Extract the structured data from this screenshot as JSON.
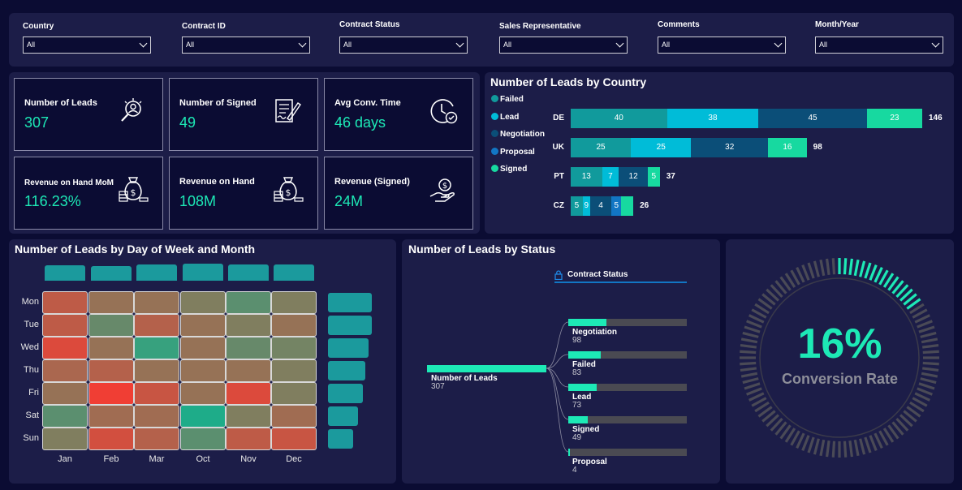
{
  "filters": [
    {
      "label": "Country",
      "value": "All"
    },
    {
      "label": "Contract ID",
      "value": "All"
    },
    {
      "label": "Contract Status",
      "value": "All"
    },
    {
      "label": "Sales Representative",
      "value": "All"
    },
    {
      "label": "Comments",
      "value": "All"
    },
    {
      "label": "Month/Year",
      "value": "All"
    }
  ],
  "kpis": [
    {
      "title": "Number of Leads",
      "value": "307",
      "icon": "search-person-icon"
    },
    {
      "title": "Number of Signed",
      "value": "49",
      "icon": "signed-document-icon"
    },
    {
      "title": "Avg Conv. Time",
      "value": "46 days",
      "icon": "clock-check-icon"
    },
    {
      "title": "Revenue on Hand MoM",
      "value": "116.23%",
      "icon": "money-bag-icon"
    },
    {
      "title": "Revenue on Hand",
      "value": "108M",
      "icon": "money-bag-icon"
    },
    {
      "title": "Revenue (Signed)",
      "value": "24M",
      "icon": "hand-money-icon"
    }
  ],
  "country_chart": {
    "title": "Number of Leads by Country",
    "legend": [
      {
        "name": "Failed",
        "color": "#119a9c"
      },
      {
        "name": "Lead",
        "color": "#00bcd8"
      },
      {
        "name": "Negotiation",
        "color": "#0b4e78"
      },
      {
        "name": "Proposal",
        "color": "#1276c4"
      },
      {
        "name": "Signed",
        "color": "#17d9a0"
      }
    ]
  },
  "heatmap": {
    "title": "Number of Leads by Day of Week and Month",
    "rows": [
      "Mon",
      "Tue",
      "Wed",
      "Thu",
      "Fri",
      "Sat",
      "Sun"
    ],
    "cols": [
      "Jan",
      "Feb",
      "Mar",
      "Oct",
      "Nov",
      "Dec"
    ]
  },
  "status_chart": {
    "title": "Number of Leads by Status",
    "filter_label": "Contract Status",
    "root_label": "Number of Leads",
    "root_value": "307",
    "items": [
      {
        "label": "Negotiation",
        "value": "98"
      },
      {
        "label": "Failed",
        "value": "83"
      },
      {
        "label": "Lead",
        "value": "73"
      },
      {
        "label": "Signed",
        "value": "49"
      },
      {
        "label": "Proposal",
        "value": "4"
      }
    ]
  },
  "gauge": {
    "value": "16%",
    "label": "Conversion Rate",
    "fraction": 0.16
  },
  "chart_data": [
    {
      "type": "bar",
      "title": "Number of Leads by Country",
      "categories": [
        "DE",
        "UK",
        "PT",
        "CZ"
      ],
      "series": [
        {
          "name": "Failed",
          "values": [
            40,
            25,
            13,
            5
          ]
        },
        {
          "name": "Lead",
          "values": [
            38,
            25,
            7,
            3
          ]
        },
        {
          "name": "Negotiation",
          "values": [
            45,
            32,
            12,
            9
          ]
        },
        {
          "name": "Proposal",
          "values": [
            0,
            0,
            0,
            4
          ]
        },
        {
          "name": "Signed",
          "values": [
            23,
            16,
            5,
            5
          ]
        }
      ],
      "totals": [
        146,
        98,
        37,
        26
      ],
      "segment_labels": [
        [
          "40",
          "38",
          "45",
          "23"
        ],
        [
          "25",
          "25",
          "32",
          "16"
        ],
        [
          "13",
          "7",
          "12",
          "5"
        ],
        [
          "5",
          "9",
          "4",
          "5"
        ]
      ],
      "legend": "left"
    },
    {
      "type": "heatmap",
      "title": "Number of Leads by Day of Week and Month",
      "rows": [
        "Mon",
        "Tue",
        "Wed",
        "Thu",
        "Fri",
        "Sat",
        "Sun"
      ],
      "cols": [
        "Jan",
        "Feb",
        "Mar",
        "Oct",
        "Nov",
        "Dec"
      ],
      "intensity": [
        [
          0.75,
          0.55,
          0.55,
          0.45,
          0.3,
          0.45
        ],
        [
          0.75,
          0.35,
          0.7,
          0.55,
          0.45,
          0.55
        ],
        [
          0.9,
          0.55,
          0.15,
          0.55,
          0.35,
          0.4
        ],
        [
          0.65,
          0.7,
          0.55,
          0.55,
          0.55,
          0.45
        ],
        [
          0.55,
          1.0,
          0.8,
          0.55,
          0.9,
          0.45
        ],
        [
          0.3,
          0.6,
          0.6,
          0.05,
          0.45,
          0.6
        ],
        [
          0.45,
          0.85,
          0.7,
          0.3,
          0.75,
          0.8
        ]
      ],
      "col_totals": [
        0.8,
        0.7,
        0.85,
        1.0,
        0.85,
        0.85
      ],
      "row_totals": [
        1.0,
        1.0,
        0.92,
        0.85,
        0.8,
        0.68,
        0.58
      ]
    },
    {
      "type": "bar",
      "title": "Number of Leads by Status",
      "categories": [
        "Negotiation",
        "Failed",
        "Lead",
        "Signed",
        "Proposal"
      ],
      "values": [
        98,
        83,
        73,
        49,
        4
      ],
      "total": 307
    }
  ]
}
